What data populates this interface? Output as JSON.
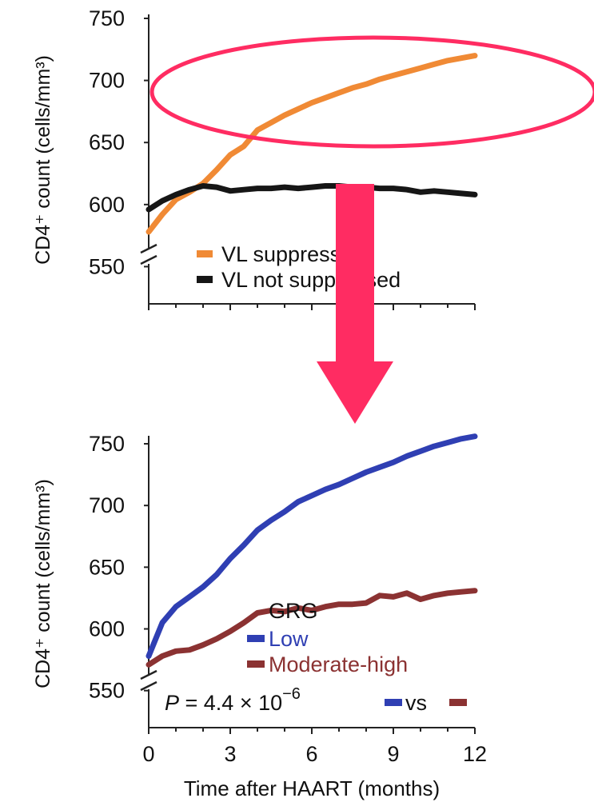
{
  "chart_data": [
    {
      "type": "line",
      "ylabel": "CD4⁺ count (cells/mm³)",
      "ylim": [
        520,
        750
      ],
      "yticks": [
        550,
        600,
        650,
        700,
        750
      ],
      "xlim": [
        0,
        12
      ],
      "axis_break": true,
      "legend_position": "bottom-right",
      "colors": {
        "VL suppressed": "#f08a35",
        "VL not suppressed": "#161616"
      },
      "series": [
        {
          "name": "VL suppressed",
          "x": [
            0,
            0.5,
            1,
            1.5,
            2,
            2.5,
            3,
            3.5,
            4,
            4.5,
            5,
            5.5,
            6,
            6.5,
            7,
            7.5,
            8,
            8.5,
            9,
            9.5,
            10,
            10.5,
            11,
            11.5,
            12
          ],
          "values": [
            578,
            592,
            604,
            610,
            617,
            628,
            640,
            647,
            660,
            666,
            672,
            677,
            682,
            686,
            690,
            694,
            697,
            701,
            704,
            707,
            710,
            713,
            716,
            718,
            720
          ]
        },
        {
          "name": "VL not suppressed",
          "x": [
            0,
            0.5,
            1,
            1.5,
            2,
            2.5,
            3,
            3.5,
            4,
            4.5,
            5,
            5.5,
            6,
            6.5,
            7,
            7.5,
            8,
            8.5,
            9,
            9.5,
            10,
            10.5,
            11,
            11.5,
            12
          ],
          "values": [
            596,
            603,
            608,
            612,
            615,
            614,
            611,
            612,
            613,
            613,
            614,
            613,
            614,
            615,
            615,
            614,
            614,
            613,
            613,
            612,
            610,
            611,
            610,
            609,
            608
          ]
        }
      ],
      "legend_labels": [
        "VL suppressed",
        "VL not suppressed"
      ]
    },
    {
      "type": "line",
      "ylabel": "CD4⁺ count (cells/mm³)",
      "xlabel": "Time after HAART (months)",
      "ylim": [
        520,
        750
      ],
      "yticks": [
        550,
        600,
        650,
        700,
        750
      ],
      "xlim": [
        0,
        12
      ],
      "xticks": [
        0,
        3,
        6,
        9,
        12
      ],
      "axis_break": true,
      "legend_title": "GRG",
      "legend_position": "bottom-right",
      "colors": {
        "Low": "#2f3fb3",
        "Moderate-high": "#8b3232"
      },
      "series": [
        {
          "name": "Low",
          "x": [
            0,
            0.5,
            1,
            1.5,
            2,
            2.5,
            3,
            3.5,
            4,
            4.5,
            5,
            5.5,
            6,
            6.5,
            7,
            7.5,
            8,
            8.5,
            9,
            9.5,
            10,
            10.5,
            11,
            11.5,
            12
          ],
          "values": [
            578,
            605,
            618,
            626,
            634,
            644,
            657,
            668,
            680,
            688,
            695,
            703,
            708,
            713,
            717,
            722,
            727,
            731,
            735,
            740,
            744,
            748,
            751,
            754,
            756
          ]
        },
        {
          "name": "Moderate-high",
          "x": [
            0,
            0.5,
            1,
            1.5,
            2,
            2.5,
            3,
            3.5,
            4,
            4.5,
            5,
            5.5,
            6,
            6.5,
            7,
            7.5,
            8,
            8.5,
            9,
            9.5,
            10,
            10.5,
            11,
            11.5,
            12
          ],
          "values": [
            571,
            578,
            582,
            583,
            587,
            592,
            598,
            605,
            613,
            615,
            614,
            617,
            615,
            618,
            620,
            620,
            621,
            627,
            626,
            629,
            624,
            627,
            629,
            630,
            631
          ]
        }
      ],
      "legend_labels": [
        "Low",
        "Moderate-high"
      ],
      "annotation": {
        "p_label": "P",
        "p_text": " = 4.4 × 10",
        "p_exponent": "−6",
        "vs_text": "vs"
      }
    }
  ],
  "overlay": {
    "ellipse_color": "#ff2c62",
    "arrow_color": "#ff2c62"
  }
}
